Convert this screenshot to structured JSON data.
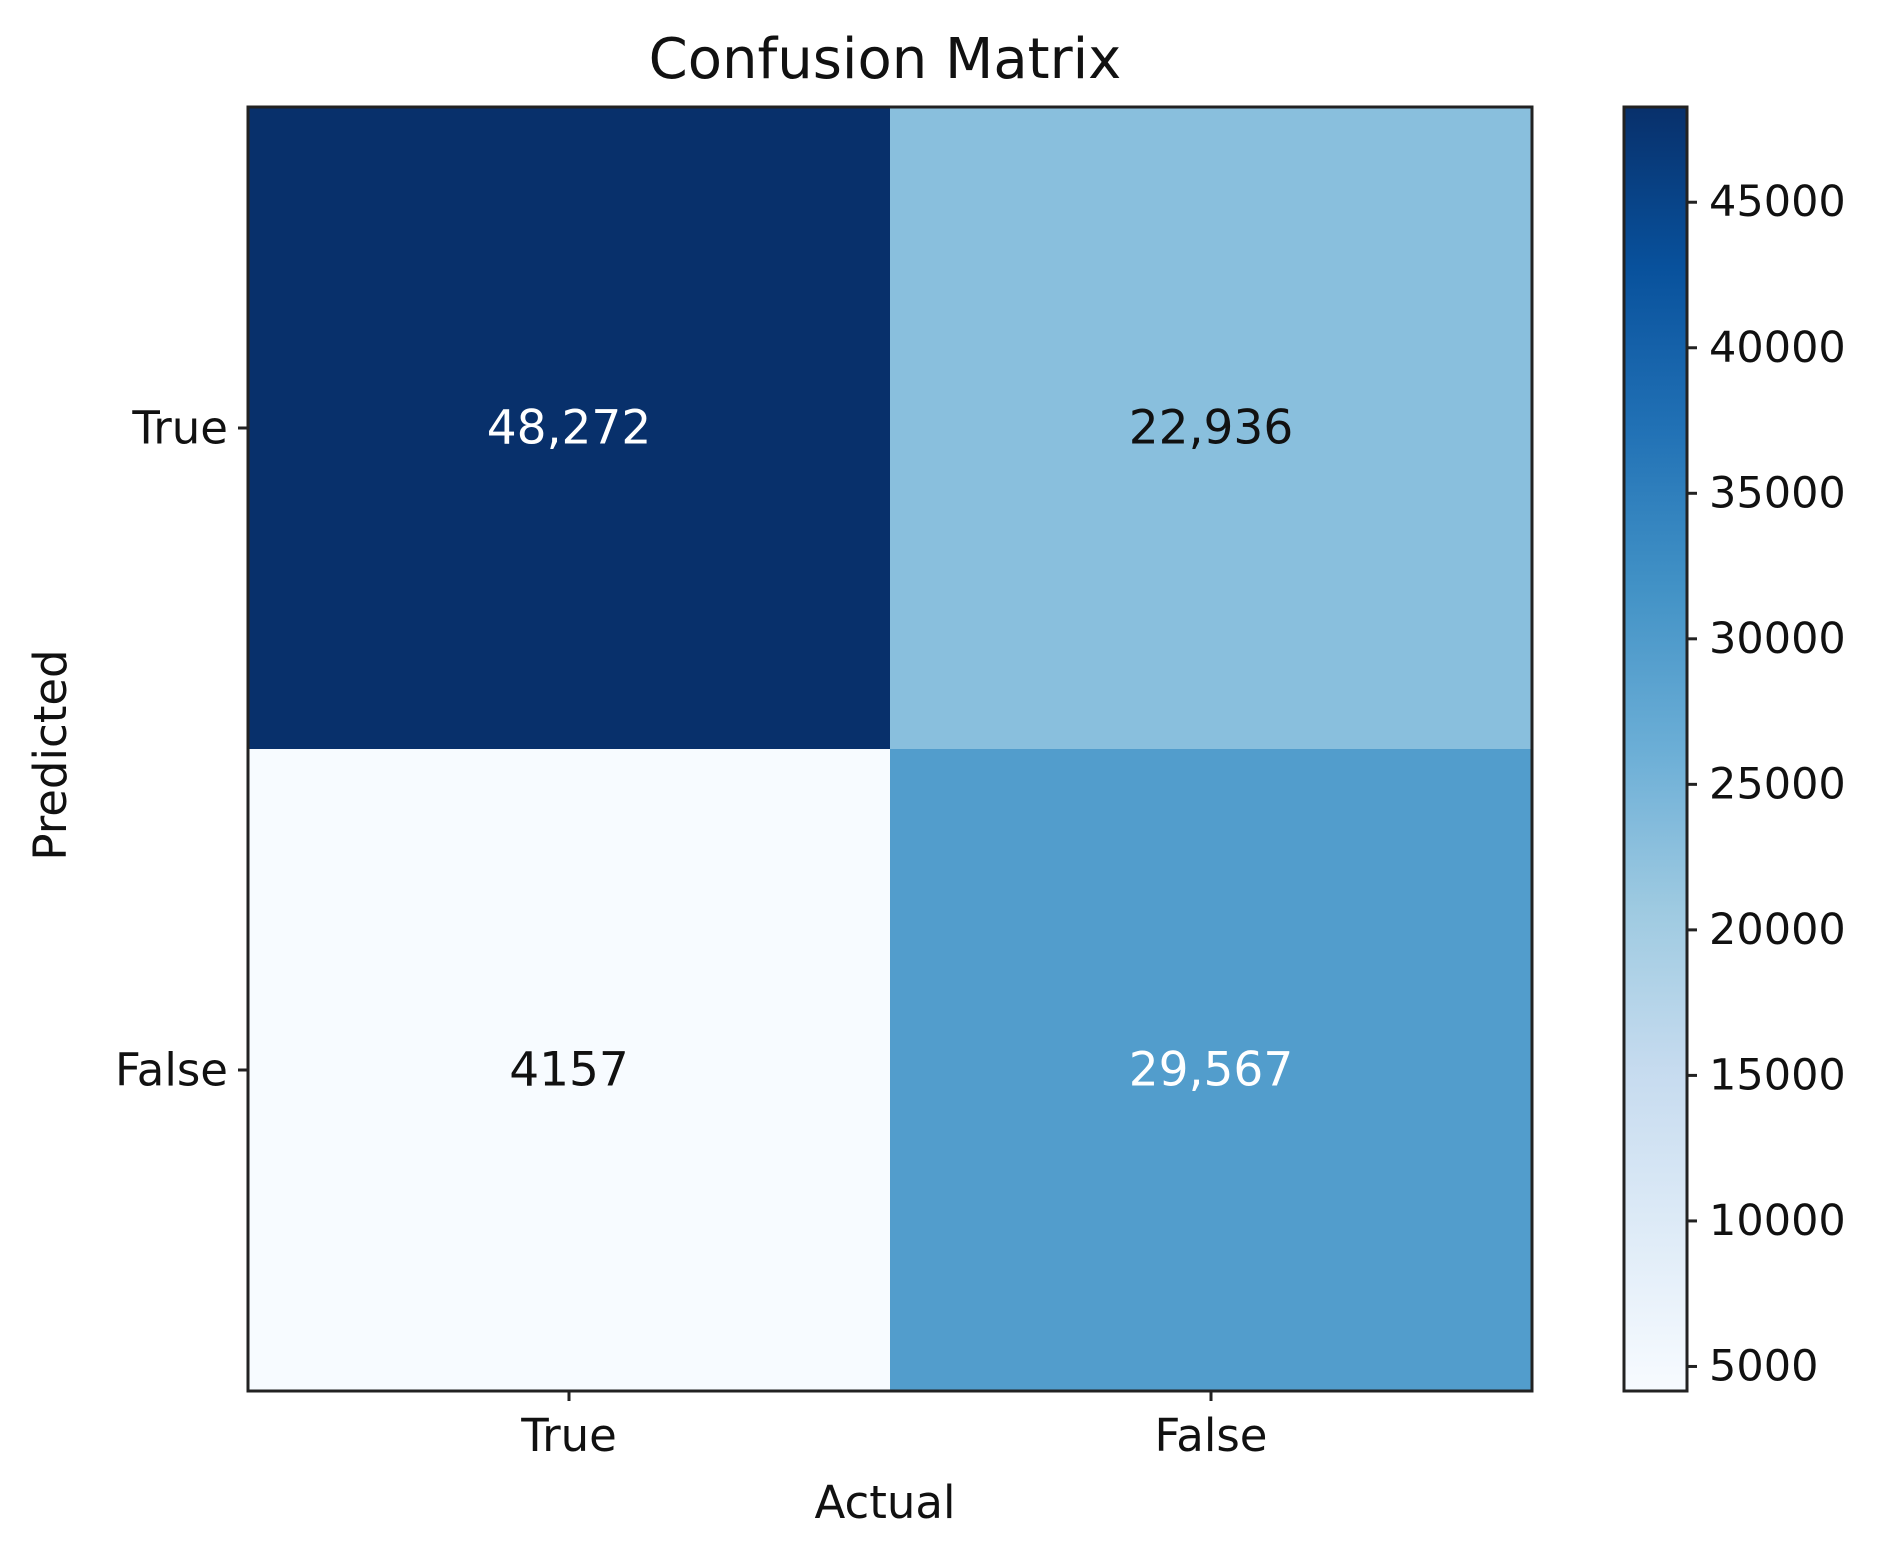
{
  "chart_data": {
    "type": "heatmap",
    "title": "Confusion Matrix",
    "xlabel": "Actual",
    "ylabel": "Predicted",
    "x_categories": [
      "True",
      "False"
    ],
    "y_categories": [
      "True",
      "False"
    ],
    "values": [
      [
        48272,
        22936
      ],
      [
        4157,
        29567
      ]
    ],
    "cell_labels": [
      [
        "48,272",
        "22,936"
      ],
      [
        "4157",
        "29,567"
      ]
    ],
    "colormap": "Blues",
    "colorbar": {
      "range": [
        4157,
        48272
      ],
      "ticks": [
        5000,
        10000,
        15000,
        20000,
        25000,
        30000,
        35000,
        40000,
        45000
      ],
      "tick_labels": [
        "5000",
        "10000",
        "15000",
        "20000",
        "25000",
        "30000",
        "35000",
        "40000",
        "45000"
      ]
    }
  }
}
